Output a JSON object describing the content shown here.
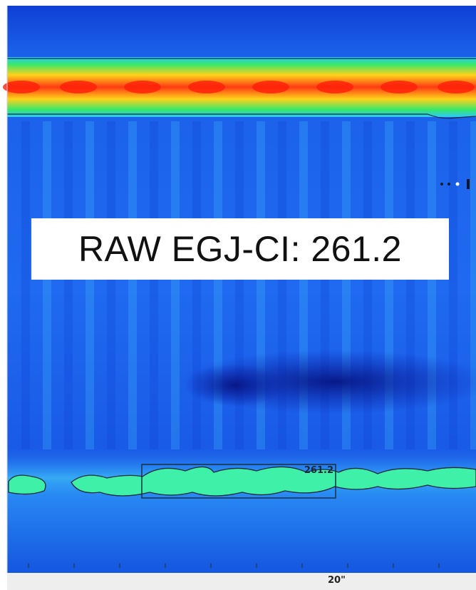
{
  "chart_data": {
    "type": "heatmap",
    "title": "",
    "annotation": "RAW EGJ-CI: 261.2",
    "box_label": "261.2",
    "x_tick_label": "20\"",
    "colors": {
      "background": "#1a5fe8",
      "dark_band": "#0a1fa8",
      "upper_band_outer": "#36e86a",
      "upper_band_mid": "#ffd21a",
      "upper_band_core": "#ff3a14",
      "lower_band": "#3ff0a8",
      "isobar_line": "#1a2a3a"
    }
  }
}
